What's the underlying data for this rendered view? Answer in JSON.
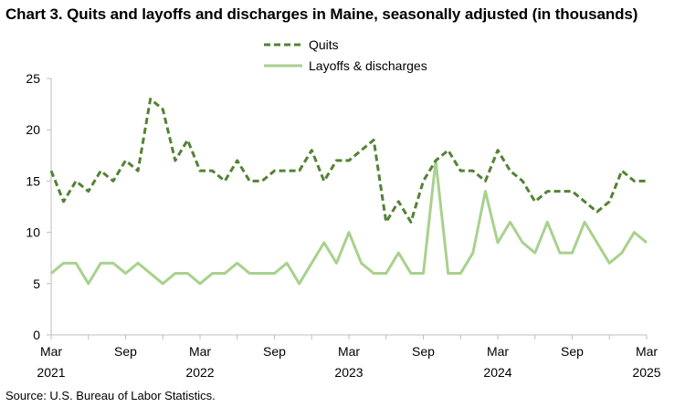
{
  "chart_data": {
    "type": "line",
    "title": "Chart 3. Quits and layoffs and discharges in Maine, seasonally adjusted (in thousands)",
    "source": "Source: U.S. Bureau of Labor Statistics.",
    "xlabel": "",
    "ylabel": "",
    "ylim": [
      0,
      25
    ],
    "yticks": [
      0,
      5,
      10,
      15,
      20,
      25
    ],
    "x_tick_labels": [
      {
        "month": "Mar",
        "year": "2021",
        "index": 0
      },
      {
        "month": "Sep",
        "year": "",
        "index": 6
      },
      {
        "month": "Mar",
        "year": "2022",
        "index": 12
      },
      {
        "month": "Sep",
        "year": "",
        "index": 18
      },
      {
        "month": "Mar",
        "year": "2023",
        "index": 24
      },
      {
        "month": "Sep",
        "year": "",
        "index": 30
      },
      {
        "month": "Mar",
        "year": "2024",
        "index": 36
      },
      {
        "month": "Sep",
        "year": "",
        "index": 42
      },
      {
        "month": "Mar",
        "year": "2025",
        "index": 48
      }
    ],
    "x_range": [
      "Mar 2021",
      "Mar 2025"
    ],
    "grid": false,
    "legend_position": "top-center",
    "series": [
      {
        "name": "Quits",
        "color": "#548235",
        "style": "dashed",
        "values": [
          16,
          13,
          15,
          14,
          16,
          15,
          17,
          16,
          23,
          22,
          17,
          19,
          16,
          16,
          15,
          17,
          15,
          15,
          16,
          16,
          16,
          18,
          15,
          17,
          17,
          18,
          19,
          11,
          13,
          11,
          15,
          17,
          18,
          16,
          16,
          15,
          18,
          16,
          15,
          13,
          14,
          14,
          14,
          13,
          12,
          13,
          16,
          15,
          15
        ]
      },
      {
        "name": "Layoffs & discharges",
        "color": "#a9d18e",
        "style": "solid",
        "values": [
          6,
          7,
          7,
          5,
          7,
          7,
          6,
          7,
          6,
          5,
          6,
          6,
          5,
          6,
          6,
          7,
          6,
          6,
          6,
          7,
          5,
          7,
          9,
          7,
          10,
          7,
          6,
          6,
          8,
          6,
          6,
          17,
          6,
          6,
          8,
          14,
          9,
          11,
          9,
          8,
          11,
          8,
          8,
          11,
          9,
          7,
          8,
          10,
          9
        ]
      }
    ]
  }
}
